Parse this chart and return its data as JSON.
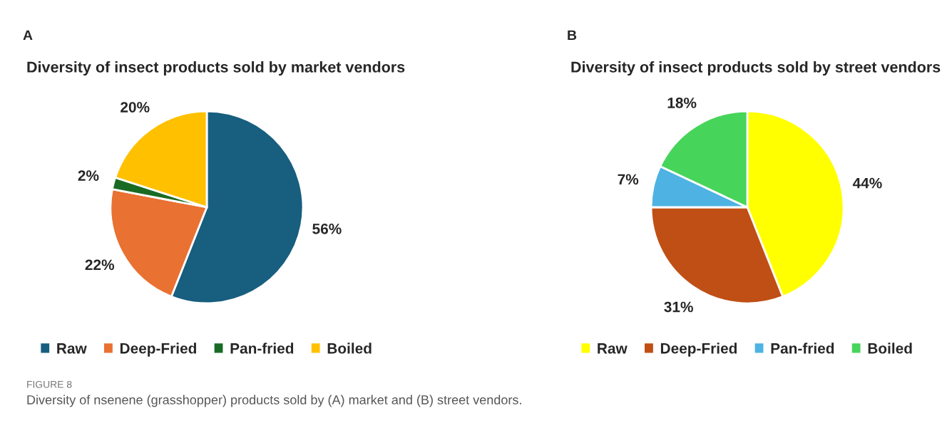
{
  "chart_data": [
    {
      "type": "pie",
      "title": "Diversity of insect products sold by market vendors",
      "categories": [
        "Raw",
        "Deep-Fried",
        "Pan-fried",
        "Boiled"
      ],
      "values": [
        56,
        22,
        2,
        20
      ],
      "colors": [
        "#175e7f",
        "#e97132",
        "#196b24",
        "#ffc000"
      ],
      "value_labels": [
        "56%",
        "22%",
        "2%",
        "20%"
      ],
      "legend": "bottom",
      "annotations": [
        "A",
        "FIGURE 8",
        "Diversity of nsenene (grasshopper) products sold by (A) market and (B) street vendors."
      ]
    },
    {
      "type": "pie",
      "title": "Diversity of insect products sold by street vendors",
      "categories": [
        "Raw",
        "Deep-Fried",
        "Pan-fried",
        "Boiled"
      ],
      "values": [
        44,
        31,
        7,
        18
      ],
      "colors": [
        "#ffff00",
        "#c04f15",
        "#4eb3e3",
        "#47d45a"
      ],
      "value_labels": [
        "44%",
        "31%",
        "7%",
        "18%"
      ],
      "legend": "bottom",
      "annotations": [
        "B"
      ]
    }
  ]
}
